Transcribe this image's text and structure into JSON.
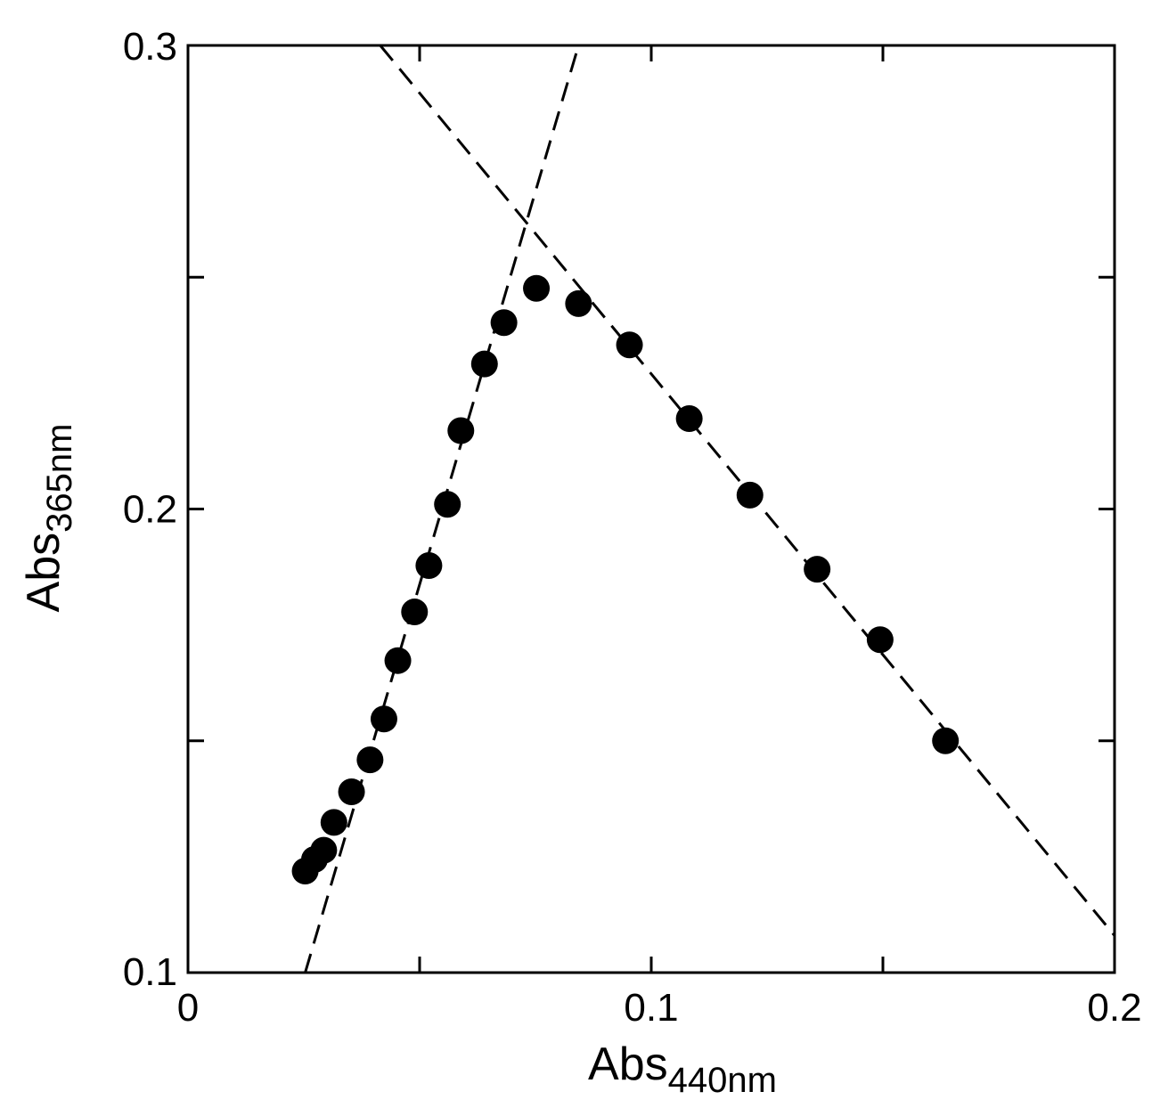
{
  "chart_data": {
    "type": "scatter",
    "title": "",
    "xlabel": {
      "main": "Abs",
      "sub": "440nm"
    },
    "ylabel": {
      "main": "Abs",
      "sub": "365nm"
    },
    "xlim": [
      0,
      0.2
    ],
    "ylim": [
      0.1,
      0.3
    ],
    "x_ticks": [
      0,
      0.05,
      0.1,
      0.15,
      0.2
    ],
    "y_ticks": [
      0.1,
      0.15,
      0.2,
      0.25,
      0.3
    ],
    "x_tick_labels": {
      "0": "0",
      "0.1": "0.1",
      "0.2": "0.2"
    },
    "y_tick_labels": {
      "0.1": "0.1",
      "0.2": "0.2",
      "0.3": "0.3"
    },
    "grid": false,
    "legend": "none",
    "series": [
      {
        "marker": "filled-circle",
        "color": "#000000",
        "points": [
          [
            0.0253,
            0.1219
          ],
          [
            0.0273,
            0.1244
          ],
          [
            0.0293,
            0.1264
          ],
          [
            0.0315,
            0.1324
          ],
          [
            0.0353,
            0.139
          ],
          [
            0.0393,
            0.1459
          ],
          [
            0.0423,
            0.1547
          ],
          [
            0.0453,
            0.1673
          ],
          [
            0.0489,
            0.1778
          ],
          [
            0.052,
            0.1878
          ],
          [
            0.056,
            0.201
          ],
          [
            0.0589,
            0.2169
          ],
          [
            0.064,
            0.2313
          ],
          [
            0.0682,
            0.2402
          ],
          [
            0.0752,
            0.2476
          ],
          [
            0.0843,
            0.2443
          ],
          [
            0.0953,
            0.2354
          ],
          [
            0.1082,
            0.2195
          ],
          [
            0.1213,
            0.203
          ],
          [
            0.1358,
            0.187
          ],
          [
            0.1494,
            0.1718
          ],
          [
            0.1635,
            0.15
          ]
        ]
      }
    ],
    "fit_lines": [
      {
        "style": "dashed",
        "x": [
          0.0253,
          0.0843
        ],
        "y": [
          0.1,
          0.3
        ]
      },
      {
        "style": "dashed",
        "x": [
          0.0415,
          0.2
        ],
        "y": [
          0.3,
          0.108
        ]
      }
    ]
  }
}
